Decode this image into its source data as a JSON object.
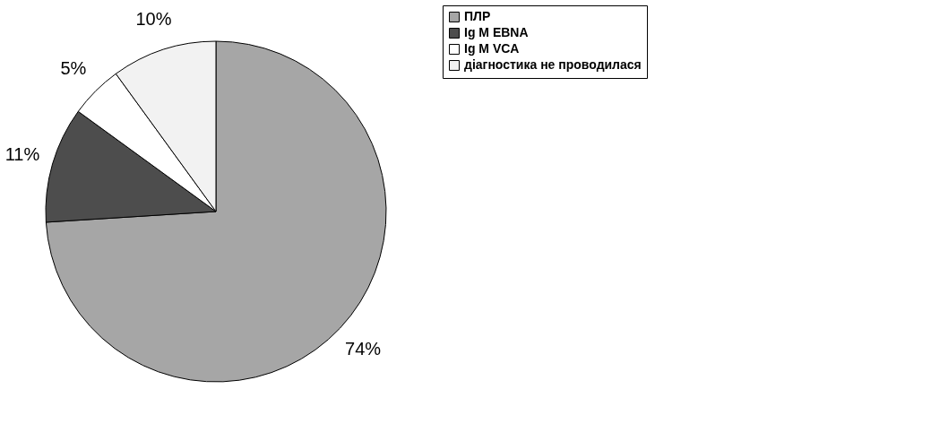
{
  "chart_data": {
    "type": "pie",
    "categories": [
      "ПЛР",
      "Ig M EBNA",
      "Ig M VCA",
      "діагностика не проводилася"
    ],
    "values": [
      74,
      11,
      5,
      10
    ],
    "colors": [
      "#a6a6a6",
      "#4d4d4d",
      "#ffffff",
      "#f2f2f2"
    ],
    "value_labels": [
      "74%",
      "11%",
      "5%",
      "10%"
    ],
    "legend": "right"
  }
}
